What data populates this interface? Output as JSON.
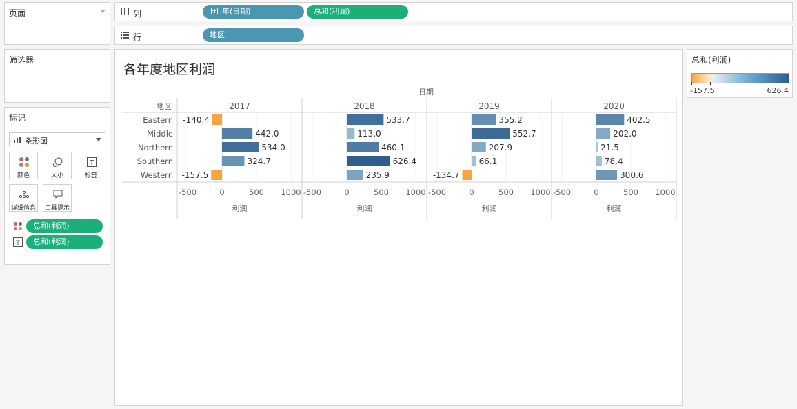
{
  "panels": {
    "pages": "页面",
    "filters": "筛选器",
    "marks": "标记"
  },
  "marks": {
    "mark_type": "条形图",
    "buttons": {
      "color": "颜色",
      "size": "大小",
      "label": "标签",
      "detail": "详细信息",
      "tooltip": "工具提示"
    },
    "pills": [
      "总和(利润)",
      "总和(利润)"
    ]
  },
  "shelves": {
    "columns_label": "列",
    "rows_label": "行",
    "columns_pills": [
      "年(日期)",
      "总和(利润)"
    ],
    "rows_pills": [
      "地区"
    ]
  },
  "viz": {
    "title": "各年度地区利润"
  },
  "legend": {
    "title": "总和(利润)",
    "min": "-157.5",
    "max": "626.4"
  },
  "chart_data": {
    "type": "bar",
    "title": "各年度地区利润",
    "column_header": "日期",
    "row_header": "地区",
    "xlabel": "利润",
    "xlim": [
      -500,
      1000
    ],
    "xticks": [
      "-500",
      "0",
      "500",
      "1000"
    ],
    "years": [
      "2017",
      "2018",
      "2019",
      "2020"
    ],
    "categories": [
      "Eastern",
      "Middle",
      "Northern",
      "Southern",
      "Western"
    ],
    "series": [
      {
        "name": "2017",
        "values": [
          -140.4,
          442.0,
          534.0,
          324.7,
          -157.5
        ],
        "labels": [
          "-140.4",
          "442.0",
          "534.0",
          "324.7",
          "-157.5"
        ]
      },
      {
        "name": "2018",
        "values": [
          533.7,
          113.0,
          460.1,
          626.4,
          235.9
        ],
        "labels": [
          "533.7",
          "113.0",
          "460.1",
          "626.4",
          "235.9"
        ]
      },
      {
        "name": "2019",
        "values": [
          355.2,
          552.7,
          207.9,
          66.1,
          -134.7
        ],
        "labels": [
          "355.2",
          "552.7",
          "207.9",
          "66.1",
          "-134.7"
        ]
      },
      {
        "name": "2020",
        "values": [
          402.5,
          202.0,
          21.5,
          78.4,
          300.6
        ],
        "labels": [
          "402.5",
          "202.0",
          "21.5",
          "78.4",
          "300.6"
        ]
      }
    ],
    "color_range": [
      -157.5,
      626.4
    ],
    "colors": {
      "negative": "#f7a340",
      "low": "#a9cde2",
      "high": "#2f5e8e"
    }
  }
}
